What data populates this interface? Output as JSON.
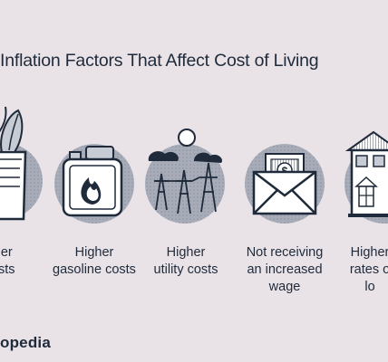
{
  "title": "Inflation Factors That Affect Cost of Living",
  "factors": [
    {
      "icon": "grocery-bag-icon",
      "label": "er\nsts"
    },
    {
      "icon": "gasoline-can-icon",
      "label": "Higher\ngasoline costs"
    },
    {
      "icon": "power-lines-icon",
      "label": "Higher\nutility costs"
    },
    {
      "icon": "money-envelope-icon",
      "label": "Not receiving\nan increased\nwage"
    },
    {
      "icon": "house-icon",
      "label": "Higher\nrates o\nlo"
    }
  ],
  "brand": "opedia",
  "colors": {
    "background": "#e9e3e8",
    "ink": "#1f2a3a",
    "circle": "#a7acb8"
  }
}
